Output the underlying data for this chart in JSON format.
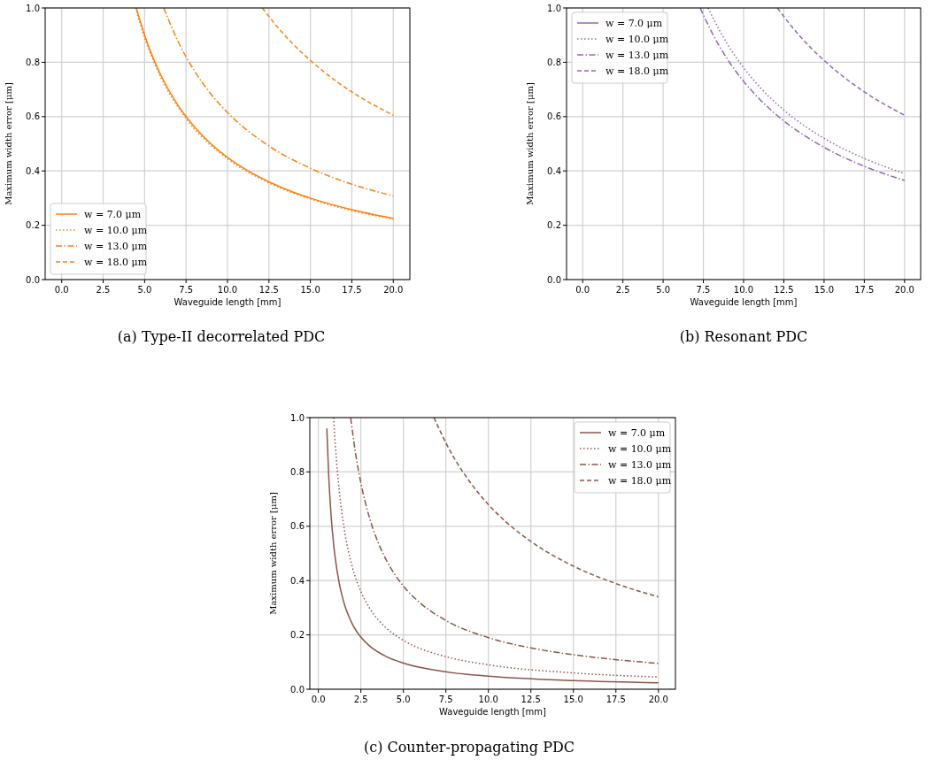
{
  "chart_data": [
    {
      "type": "line",
      "title": "(a) Type-II decorrelated PDC",
      "xlabel": "Waveguide length [mm]",
      "ylabel": "Maximum width error [μm]",
      "xlim": [
        -1,
        21
      ],
      "ylim": [
        0,
        1
      ],
      "xticks": [
        {
          "value": 0,
          "label": "0.0"
        },
        {
          "value": 2.5,
          "label": "2.5"
        },
        {
          "value": 5,
          "label": "5.0"
        },
        {
          "value": 7.5,
          "label": "7.5"
        },
        {
          "value": 10,
          "label": "10.0"
        },
        {
          "value": 12.5,
          "label": "12.5"
        },
        {
          "value": 15,
          "label": "15.0"
        },
        {
          "value": 17.5,
          "label": "17.5"
        },
        {
          "value": 20,
          "label": "20.0"
        }
      ],
      "yticks": [
        {
          "value": 0,
          "label": "0.0"
        },
        {
          "value": 0.2,
          "label": "0.2"
        },
        {
          "value": 0.4,
          "label": "0.4"
        },
        {
          "value": 0.6,
          "label": "0.6"
        },
        {
          "value": 0.8,
          "label": "0.8"
        },
        {
          "value": 1,
          "label": "1.0"
        }
      ],
      "grid": true,
      "legend": "bottom left",
      "series": [
        {
          "name": "w = 7.0 μm",
          "color": "#ff7f0e",
          "line_style": "solid",
          "x": [
            4.5,
            5,
            5.5,
            6,
            7,
            7.5,
            8,
            9,
            10,
            11,
            12.5,
            14,
            15,
            17.5,
            20
          ],
          "values": [
            1.0,
            0.9,
            0.818,
            0.75,
            0.643,
            0.6,
            0.563,
            0.5,
            0.45,
            0.409,
            0.36,
            0.321,
            0.3,
            0.257,
            0.225
          ]
        },
        {
          "name": "w = 10.0 μm",
          "color": "#ff7f0e",
          "line_style": "dotted",
          "x": [
            4.45,
            5,
            6,
            7.5,
            10,
            12.5,
            15,
            17.5,
            20
          ],
          "values": [
            1.0,
            0.89,
            0.742,
            0.593,
            0.445,
            0.356,
            0.297,
            0.254,
            0.223
          ]
        },
        {
          "name": "w = 13.0 μm",
          "color": "#ff7f0e",
          "line_style": "dashdot",
          "x": [
            6.15,
            7,
            7.5,
            8,
            9,
            10,
            12.5,
            15,
            17.5,
            20
          ],
          "values": [
            1.0,
            0.879,
            0.82,
            0.769,
            0.683,
            0.615,
            0.492,
            0.41,
            0.351,
            0.308
          ]
        },
        {
          "name": "w = 18.0 μm",
          "color": "#ff7f0e",
          "line_style": "dashed",
          "x": [
            12.1,
            13,
            14,
            15,
            16,
            17.5,
            20
          ],
          "values": [
            1.0,
            0.931,
            0.864,
            0.807,
            0.756,
            0.691,
            0.605
          ]
        }
      ]
    },
    {
      "type": "line",
      "title": "(b) Resonant PDC",
      "xlabel": "Waveguide length [mm]",
      "ylabel": "Maximum width error [μm]",
      "xlim": [
        -1,
        21
      ],
      "ylim": [
        0,
        1
      ],
      "xticks": [
        {
          "value": 0,
          "label": "0.0"
        },
        {
          "value": 2.5,
          "label": "2.5"
        },
        {
          "value": 5,
          "label": "5.0"
        },
        {
          "value": 7.5,
          "label": "7.5"
        },
        {
          "value": 10,
          "label": "10.0"
        },
        {
          "value": 12.5,
          "label": "12.5"
        },
        {
          "value": 15,
          "label": "15.0"
        },
        {
          "value": 17.5,
          "label": "17.5"
        },
        {
          "value": 20,
          "label": "20.0"
        }
      ],
      "yticks": [
        {
          "value": 0,
          "label": "0.0"
        },
        {
          "value": 0.2,
          "label": "0.2"
        },
        {
          "value": 0.4,
          "label": "0.4"
        },
        {
          "value": 0.6,
          "label": "0.6"
        },
        {
          "value": 0.8,
          "label": "0.8"
        },
        {
          "value": 1,
          "label": "1.0"
        }
      ],
      "grid": true,
      "legend": "top left",
      "series": [
        {
          "name": "w = 7.0 μm",
          "color": "#9467bd",
          "line_style": "solid"
        },
        {
          "name": "w = 10.0 μm",
          "color": "#9467bd",
          "line_style": "dotted",
          "x": [
            7.8,
            8.5,
            9,
            10,
            11,
            12.5,
            15,
            17.5,
            20
          ],
          "values": [
            1.0,
            0.918,
            0.867,
            0.78,
            0.709,
            0.624,
            0.52,
            0.446,
            0.39
          ]
        },
        {
          "name": "w = 13.0 μm",
          "color": "#9467bd",
          "line_style": "dashdot",
          "x": [
            7.3,
            8,
            9,
            10,
            11,
            12.5,
            15,
            17.5,
            20
          ],
          "values": [
            1.0,
            0.913,
            0.811,
            0.73,
            0.664,
            0.584,
            0.487,
            0.417,
            0.365
          ]
        },
        {
          "name": "w = 18.0 μm",
          "color": "#9467bd",
          "line_style": "dashed",
          "x": [
            12.1,
            13,
            14,
            15,
            16,
            17.5,
            20
          ],
          "values": [
            1.0,
            0.931,
            0.864,
            0.807,
            0.756,
            0.691,
            0.605
          ]
        }
      ]
    },
    {
      "type": "line",
      "title": "(c) Counter-propagating PDC",
      "xlabel": "Waveguide length [mm]",
      "ylabel": "Maximum width error [μm]",
      "xlim": [
        -0.5,
        21
      ],
      "ylim": [
        0,
        1
      ],
      "xticks": [
        {
          "value": 0,
          "label": "0.0"
        },
        {
          "value": 2.5,
          "label": "2.5"
        },
        {
          "value": 5,
          "label": "5.0"
        },
        {
          "value": 7.5,
          "label": "7.5"
        },
        {
          "value": 10,
          "label": "10.0"
        },
        {
          "value": 12.5,
          "label": "12.5"
        },
        {
          "value": 15,
          "label": "15.0"
        },
        {
          "value": 17.5,
          "label": "17.5"
        },
        {
          "value": 20,
          "label": "20.0"
        }
      ],
      "yticks": [
        {
          "value": 0,
          "label": "0.0"
        },
        {
          "value": 0.2,
          "label": "0.2"
        },
        {
          "value": 0.4,
          "label": "0.4"
        },
        {
          "value": 0.6,
          "label": "0.6"
        },
        {
          "value": 0.8,
          "label": "0.8"
        },
        {
          "value": 1,
          "label": "1.0"
        }
      ],
      "grid": true,
      "legend": "top right",
      "series": [
        {
          "name": "w = 7.0 μm",
          "color": "#8c564b",
          "line_style": "solid",
          "x": [
            0.5,
            0.6,
            0.75,
            0.9,
            1.0,
            1.25,
            1.5,
            2,
            2.5,
            3,
            4,
            5,
            7.5,
            10,
            15,
            20
          ],
          "values": [
            0.96,
            0.8,
            0.64,
            0.533,
            0.48,
            0.384,
            0.32,
            0.24,
            0.192,
            0.16,
            0.12,
            0.096,
            0.064,
            0.048,
            0.032,
            0.024
          ]
        },
        {
          "name": "w = 10.0 μm",
          "color": "#8c564b",
          "line_style": "dotted",
          "x": [
            0.9,
            1,
            1.25,
            1.5,
            2,
            2.5,
            3,
            4,
            5,
            7.5,
            10,
            15,
            20
          ],
          "values": [
            1.0,
            0.9,
            0.72,
            0.6,
            0.45,
            0.36,
            0.3,
            0.225,
            0.18,
            0.12,
            0.09,
            0.06,
            0.045
          ]
        },
        {
          "name": "w = 13.0 μm",
          "color": "#8c564b",
          "line_style": "dashdot",
          "x": [
            1.9,
            2.25,
            2.5,
            3,
            3.5,
            4,
            5,
            6,
            7.5,
            10,
            12.5,
            15,
            20
          ],
          "values": [
            1.0,
            0.844,
            0.76,
            0.633,
            0.543,
            0.475,
            0.38,
            0.317,
            0.253,
            0.19,
            0.152,
            0.127,
            0.095
          ]
        },
        {
          "name": "w = 18.0 μm",
          "color": "#8c564b",
          "line_style": "dashed",
          "x": [
            6.8,
            7.5,
            8,
            9,
            10,
            11,
            12.5,
            15,
            17.5,
            20
          ],
          "values": [
            1.0,
            0.907,
            0.85,
            0.756,
            0.68,
            0.618,
            0.544,
            0.453,
            0.389,
            0.34
          ]
        }
      ]
    }
  ]
}
